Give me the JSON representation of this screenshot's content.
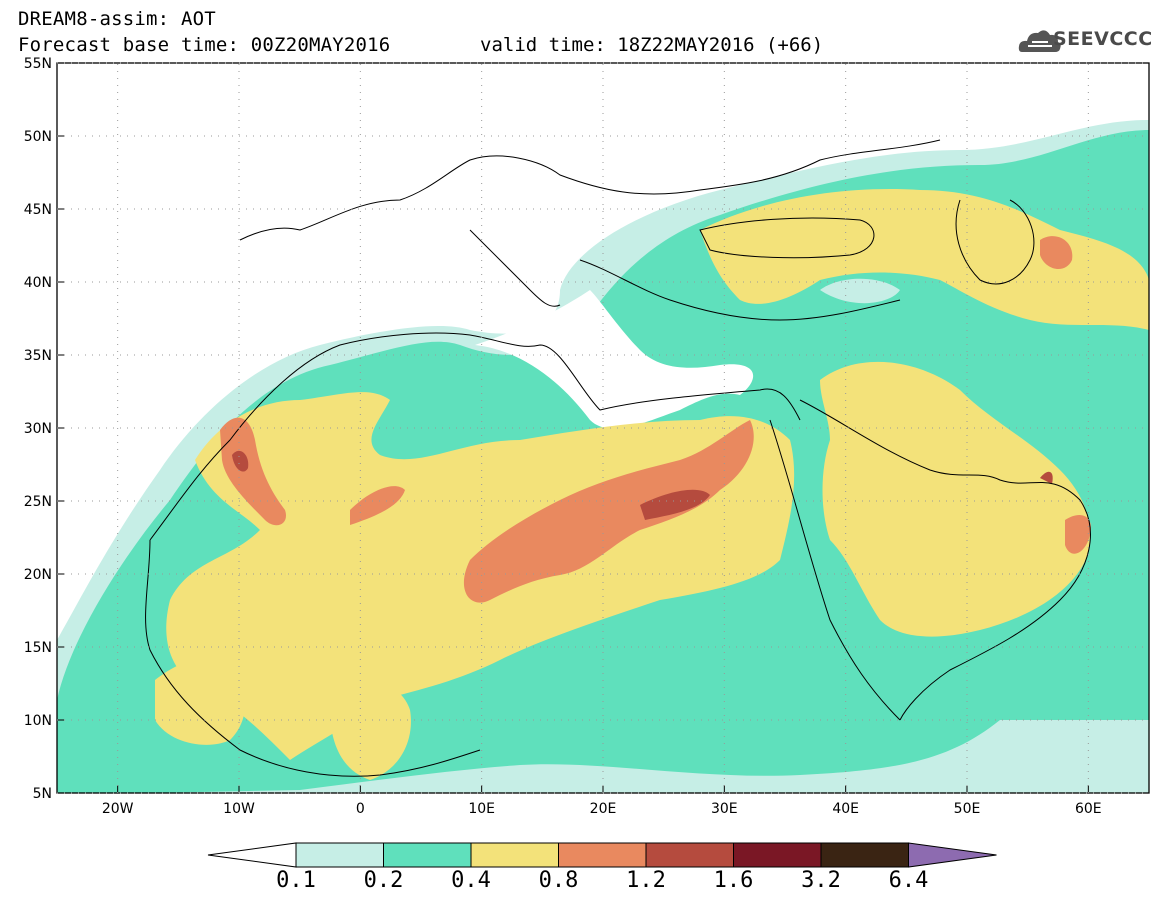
{
  "header": {
    "product": "DREAM8-assim: AOT",
    "base_time": "Forecast base time: 00Z20MAY2016",
    "valid_time": "valid time: 18Z22MAY2016 (+66)",
    "logo": "SEEVCCC",
    "logo_icon": "cloud-logo-icon"
  },
  "map": {
    "lon_range": [
      -25,
      65
    ],
    "lat_range": [
      5,
      55
    ],
    "lat_ticks": [
      "5N",
      "10N",
      "15N",
      "20N",
      "25N",
      "30N",
      "35N",
      "40N",
      "45N",
      "50N",
      "55N"
    ],
    "lon_ticks": [
      "20W",
      "10W",
      "0",
      "10E",
      "20E",
      "30E",
      "40E",
      "50E",
      "60E"
    ]
  },
  "colorbar": {
    "labels": [
      "0.1",
      "0.2",
      "0.4",
      "0.8",
      "1.2",
      "1.6",
      "3.2",
      "6.4"
    ],
    "colors": [
      "#ffffff",
      "#c6eee6",
      "#5fe0bc",
      "#f3e27a",
      "#e9895f",
      "#b54b3e",
      "#7a1725",
      "#3a2413",
      "#8d6bb0"
    ]
  }
}
